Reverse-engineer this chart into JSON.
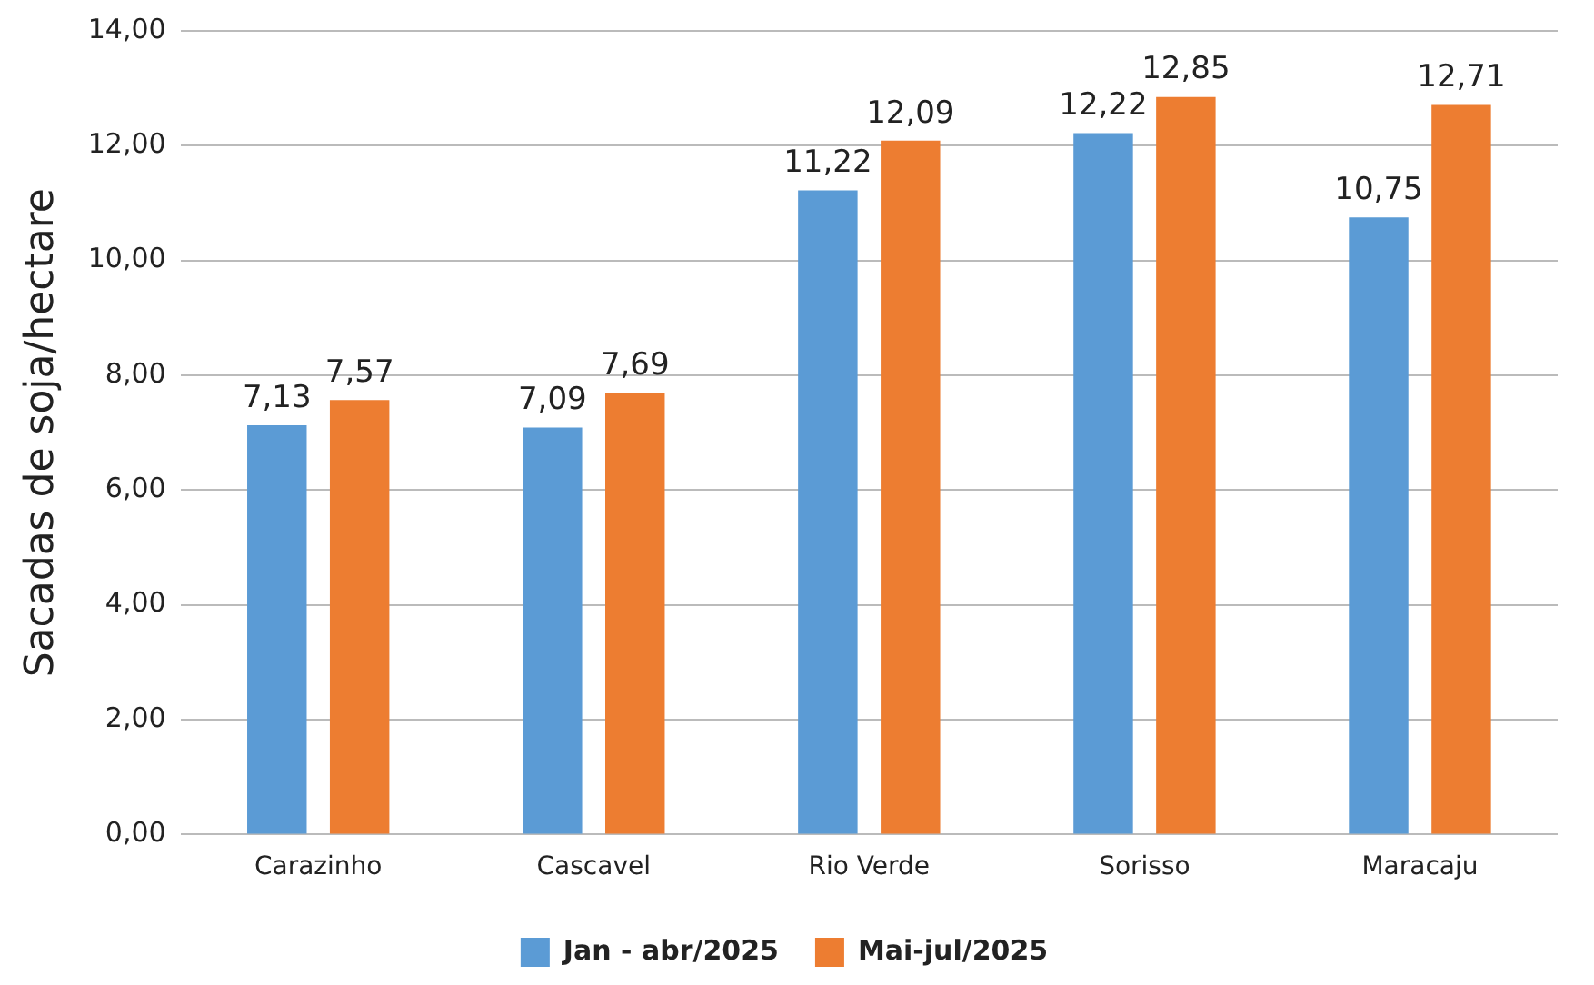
{
  "chart_data": {
    "type": "bar",
    "ylabel": "Sacadas de soja/hectare",
    "categories": [
      "Carazinho",
      "Cascavel",
      "Rio Verde",
      "Sorisso",
      "Maracaju"
    ],
    "series": [
      {
        "name": "Jan - abr/2025",
        "color": "#5b9bd5",
        "values": [
          7.13,
          7.09,
          11.22,
          12.22,
          10.75
        ],
        "value_labels": [
          "7,13",
          "7,09",
          "11,22",
          "12,22",
          "10,75"
        ]
      },
      {
        "name": "Mai-jul/2025",
        "color": "#ed7d31",
        "values": [
          7.57,
          7.69,
          12.09,
          12.85,
          12.71
        ],
        "value_labels": [
          "7,57",
          "7,69",
          "12,09",
          "12,85",
          "12,71"
        ]
      }
    ],
    "ylim": [
      0,
      14
    ],
    "yticks": [
      {
        "value": 0,
        "label": "0,00"
      },
      {
        "value": 2,
        "label": "2,00"
      },
      {
        "value": 4,
        "label": "4,00"
      },
      {
        "value": 6,
        "label": "6,00"
      },
      {
        "value": 8,
        "label": "8,00"
      },
      {
        "value": 10,
        "label": "10,00"
      },
      {
        "value": 12,
        "label": "12,00"
      },
      {
        "value": 14,
        "label": "14,00"
      }
    ],
    "grid": "y",
    "legend": "bottom"
  }
}
